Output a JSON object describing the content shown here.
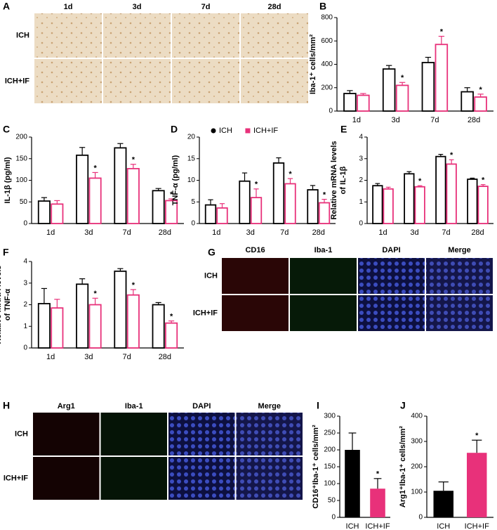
{
  "image_panels": [
    {
      "letter": "A",
      "columns": [
        "1d",
        "3d",
        "7d",
        "28d"
      ],
      "rows": [
        "ICH",
        "ICH+IF"
      ]
    },
    {
      "letter": "G",
      "columns": [
        "CD16",
        "Iba-1",
        "DAPI",
        "Merge"
      ],
      "rows": [
        "ICH",
        "ICH+IF"
      ]
    },
    {
      "letter": "H",
      "columns": [
        "Arg1",
        "Iba-1",
        "DAPI",
        "Merge"
      ],
      "rows": [
        "ICH",
        "ICH+IF"
      ]
    }
  ],
  "chart_data": [
    {
      "type": "bar",
      "letter": "B",
      "ylabel": [
        "Iba-1⁺ cells/mm²"
      ],
      "categories": [
        "1d",
        "3d",
        "7d",
        "28d"
      ],
      "bar_style": "outline",
      "ylim": [
        0,
        800
      ],
      "yticks": [
        0,
        200,
        400,
        600,
        800
      ],
      "series": [
        {
          "color": "#000000",
          "values": [
            150,
            360,
            415,
            165
          ],
          "errors": [
            25,
            30,
            45,
            35
          ],
          "annotations": [
            null,
            null,
            null,
            null
          ]
        },
        {
          "color": "#e8317a",
          "values": [
            135,
            220,
            570,
            120
          ],
          "errors": [
            15,
            25,
            70,
            25
          ],
          "annotations": [
            null,
            "*",
            "*",
            "*"
          ]
        }
      ]
    },
    {
      "type": "bar",
      "letter": "C",
      "ylabel": [
        "IL-1β (pg/ml)"
      ],
      "categories": [
        "1d",
        "3d",
        "7d",
        "28d"
      ],
      "bar_style": "outline",
      "ylim": [
        0,
        200
      ],
      "yticks": [
        0,
        50,
        100,
        150,
        200
      ],
      "series": [
        {
          "color": "#000000",
          "values": [
            52,
            158,
            175,
            76
          ],
          "errors": [
            8,
            18,
            10,
            5
          ],
          "annotations": [
            null,
            null,
            null,
            null
          ]
        },
        {
          "color": "#e8317a",
          "values": [
            45,
            105,
            127,
            53
          ],
          "errors": [
            8,
            13,
            10,
            4
          ],
          "annotations": [
            null,
            "*",
            "*",
            "*"
          ]
        }
      ]
    },
    {
      "type": "bar",
      "letter": "D",
      "ylabel": [
        "TNF-α (pg/ml)"
      ],
      "categories": [
        "1d",
        "3d",
        "7d",
        "28d"
      ],
      "bar_style": "outline",
      "legend": "top",
      "ylim": [
        0,
        20
      ],
      "yticks": [
        0,
        5,
        10,
        15,
        20
      ],
      "series": [
        {
          "name": "ICH",
          "marker": "circle",
          "color": "#000000",
          "values": [
            4.3,
            9.8,
            14,
            7.8
          ],
          "errors": [
            1.2,
            1.9,
            1.2,
            1
          ],
          "annotations": [
            null,
            null,
            null,
            null
          ]
        },
        {
          "name": "ICH+IF",
          "marker": "square",
          "color": "#e8317a",
          "values": [
            3.6,
            6,
            9.2,
            4.8
          ],
          "errors": [
            1,
            2,
            1.2,
            0.8
          ],
          "annotations": [
            null,
            "*",
            "*",
            "*"
          ]
        }
      ]
    },
    {
      "type": "bar",
      "letter": "E",
      "ylabel": [
        "Relative mRNA levels",
        "of IL-1β"
      ],
      "categories": [
        "1d",
        "3d",
        "7d",
        "28d"
      ],
      "bar_style": "outline",
      "ylim": [
        0,
        4
      ],
      "yticks": [
        0,
        1,
        2,
        3,
        4
      ],
      "series": [
        {
          "color": "#000000",
          "values": [
            1.75,
            2.3,
            3.1,
            2.05
          ],
          "errors": [
            0.1,
            0.1,
            0.1,
            0.05
          ],
          "annotations": [
            null,
            null,
            null,
            null
          ]
        },
        {
          "color": "#e8317a",
          "values": [
            1.6,
            1.7,
            2.75,
            1.72
          ],
          "errors": [
            0.08,
            0.05,
            0.2,
            0.08
          ],
          "annotations": [
            null,
            "*",
            "*",
            "*"
          ]
        }
      ]
    },
    {
      "type": "bar",
      "letter": "F",
      "ylabel": [
        "Relative mRNA levels",
        "of TNF-α"
      ],
      "categories": [
        "1d",
        "3d",
        "7d",
        "28d"
      ],
      "bar_style": "outline",
      "ylim": [
        0,
        4
      ],
      "yticks": [
        0,
        1,
        2,
        3,
        4
      ],
      "series": [
        {
          "color": "#000000",
          "values": [
            2.05,
            2.95,
            3.55,
            2.0
          ],
          "errors": [
            0.7,
            0.25,
            0.12,
            0.1
          ],
          "annotations": [
            null,
            null,
            null,
            null
          ]
        },
        {
          "color": "#e8317a",
          "values": [
            1.85,
            2.0,
            2.45,
            1.15
          ],
          "errors": [
            0.4,
            0.3,
            0.25,
            0.1
          ],
          "annotations": [
            null,
            "*",
            "*",
            "*"
          ]
        }
      ]
    },
    {
      "type": "bar",
      "letter": "I",
      "ylabel": [
        "CD16⁺Iba-1⁺ cells/mm²"
      ],
      "categories": [
        "ICH",
        "ICH+IF"
      ],
      "bar_style": "filled",
      "ylim": [
        0,
        300
      ],
      "yticks": [
        0,
        50,
        100,
        150,
        200,
        250,
        300
      ],
      "values": [
        200,
        85
      ],
      "errors": [
        50,
        30
      ],
      "colors": [
        "#000000",
        "#e8317a"
      ],
      "annotations": [
        null,
        "*"
      ]
    },
    {
      "type": "bar",
      "letter": "J",
      "ylabel": [
        "Arg1⁺Iba-1⁺ cells/mm²"
      ],
      "categories": [
        "ICH",
        "ICH+IF"
      ],
      "bar_style": "filled",
      "ylim": [
        0,
        400
      ],
      "yticks": [
        0,
        100,
        200,
        300,
        400
      ],
      "values": [
        105,
        255
      ],
      "errors": [
        35,
        50
      ],
      "colors": [
        "#000000",
        "#e8317a"
      ],
      "annotations": [
        null,
        "*"
      ]
    }
  ]
}
